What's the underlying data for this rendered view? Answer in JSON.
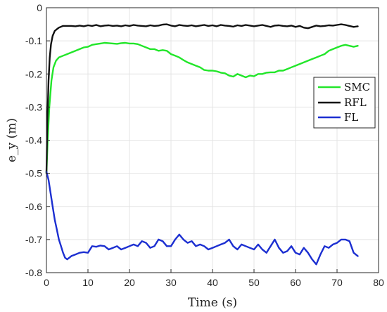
{
  "chart_data": {
    "type": "line",
    "xlabel": "Time (s)",
    "ylabel": "e_y (m)",
    "xlim": [
      0,
      80
    ],
    "ylim": [
      -0.8,
      0
    ],
    "xticks": [
      "0",
      "10",
      "20",
      "30",
      "40",
      "50",
      "60",
      "70",
      "80"
    ],
    "yticks": [
      "0",
      "-0.1",
      "-0.2",
      "-0.3",
      "-0.4",
      "-0.5",
      "-0.6",
      "-0.7",
      "-0.8"
    ],
    "grid": true,
    "legend_position": "right",
    "series": [
      {
        "name": "SMC",
        "color": "#22e62a",
        "x": [
          0,
          0.3,
          0.7,
          1.2,
          1.7,
          2.3,
          3,
          4,
          5,
          6,
          7,
          8,
          9,
          10,
          11,
          12,
          13,
          14,
          15,
          16,
          17,
          18,
          19,
          20,
          21,
          22,
          23,
          24,
          25,
          26,
          27,
          28,
          29,
          30,
          31,
          32,
          33,
          34,
          35,
          36,
          37,
          38,
          39,
          40,
          41,
          42,
          43,
          44,
          45,
          46,
          47,
          48,
          49,
          50,
          51,
          52,
          53,
          54,
          55,
          56,
          57,
          58,
          59,
          60,
          61,
          62,
          63,
          64,
          65,
          66,
          67,
          68,
          69,
          70,
          71,
          72,
          73,
          74,
          75
        ],
        "y": [
          -0.5,
          -0.4,
          -0.3,
          -0.22,
          -0.18,
          -0.16,
          -0.15,
          -0.145,
          -0.14,
          -0.135,
          -0.13,
          -0.125,
          -0.12,
          -0.118,
          -0.112,
          -0.11,
          -0.108,
          -0.106,
          -0.107,
          -0.108,
          -0.109,
          -0.107,
          -0.106,
          -0.108,
          -0.108,
          -0.11,
          -0.115,
          -0.12,
          -0.125,
          -0.125,
          -0.13,
          -0.128,
          -0.13,
          -0.14,
          -0.145,
          -0.15,
          -0.158,
          -0.165,
          -0.17,
          -0.175,
          -0.18,
          -0.188,
          -0.19,
          -0.19,
          -0.192,
          -0.196,
          -0.198,
          -0.205,
          -0.208,
          -0.2,
          -0.205,
          -0.21,
          -0.205,
          -0.207,
          -0.2,
          -0.2,
          -0.196,
          -0.195,
          -0.195,
          -0.19,
          -0.19,
          -0.185,
          -0.18,
          -0.175,
          -0.17,
          -0.165,
          -0.16,
          -0.155,
          -0.15,
          -0.145,
          -0.14,
          -0.13,
          -0.125,
          -0.12,
          -0.115,
          -0.112,
          -0.115,
          -0.118,
          -0.115
        ]
      },
      {
        "name": "RFL",
        "color": "#111111",
        "x": [
          0,
          0.2,
          0.5,
          0.8,
          1.1,
          1.5,
          2,
          2.5,
          3,
          4,
          5,
          6,
          7,
          8,
          9,
          10,
          11,
          12,
          13,
          14,
          15,
          16,
          17,
          18,
          19,
          20,
          21,
          22,
          23,
          24,
          25,
          26,
          27,
          28,
          29,
          30,
          31,
          32,
          33,
          34,
          35,
          36,
          37,
          38,
          39,
          40,
          41,
          42,
          43,
          44,
          45,
          46,
          47,
          48,
          49,
          50,
          51,
          52,
          53,
          54,
          55,
          56,
          57,
          58,
          59,
          60,
          61,
          62,
          63,
          64,
          65,
          66,
          67,
          68,
          69,
          70,
          71,
          72,
          73,
          74,
          75
        ],
        "y": [
          -0.5,
          -0.35,
          -0.22,
          -0.15,
          -0.11,
          -0.085,
          -0.07,
          -0.065,
          -0.06,
          -0.055,
          -0.055,
          -0.055,
          -0.056,
          -0.054,
          -0.056,
          -0.053,
          -0.055,
          -0.052,
          -0.056,
          -0.054,
          -0.053,
          -0.055,
          -0.054,
          -0.056,
          -0.053,
          -0.055,
          -0.052,
          -0.054,
          -0.055,
          -0.056,
          -0.053,
          -0.055,
          -0.054,
          -0.051,
          -0.05,
          -0.054,
          -0.056,
          -0.052,
          -0.054,
          -0.055,
          -0.053,
          -0.056,
          -0.054,
          -0.052,
          -0.055,
          -0.053,
          -0.056,
          -0.052,
          -0.054,
          -0.055,
          -0.057,
          -0.053,
          -0.055,
          -0.052,
          -0.054,
          -0.056,
          -0.054,
          -0.052,
          -0.055,
          -0.058,
          -0.054,
          -0.053,
          -0.055,
          -0.056,
          -0.054,
          -0.058,
          -0.055,
          -0.06,
          -0.062,
          -0.058,
          -0.054,
          -0.056,
          -0.055,
          -0.053,
          -0.054,
          -0.052,
          -0.05,
          -0.052,
          -0.055,
          -0.058,
          -0.056
        ]
      },
      {
        "name": "FL",
        "color": "#1c2fd1",
        "x": [
          0,
          0.5,
          1,
          1.5,
          2,
          2.5,
          3,
          3.5,
          4,
          4.5,
          5,
          6,
          7,
          8,
          9,
          10,
          11,
          12,
          13,
          14,
          15,
          16,
          17,
          18,
          19,
          20,
          21,
          22,
          23,
          24,
          25,
          26,
          27,
          28,
          29,
          30,
          31,
          32,
          33,
          34,
          35,
          36,
          37,
          38,
          39,
          40,
          41,
          42,
          43,
          44,
          45,
          46,
          47,
          48,
          49,
          50,
          51,
          52,
          53,
          54,
          55,
          56,
          57,
          58,
          59,
          60,
          61,
          62,
          63,
          64,
          65,
          66,
          67,
          68,
          69,
          70,
          71,
          72,
          73,
          74,
          75
        ],
        "y": [
          -0.495,
          -0.52,
          -0.56,
          -0.6,
          -0.64,
          -0.67,
          -0.7,
          -0.72,
          -0.74,
          -0.755,
          -0.76,
          -0.75,
          -0.745,
          -0.74,
          -0.738,
          -0.74,
          -0.72,
          -0.722,
          -0.718,
          -0.72,
          -0.73,
          -0.725,
          -0.72,
          -0.73,
          -0.725,
          -0.72,
          -0.715,
          -0.72,
          -0.705,
          -0.71,
          -0.725,
          -0.72,
          -0.7,
          -0.705,
          -0.72,
          -0.72,
          -0.7,
          -0.685,
          -0.7,
          -0.71,
          -0.705,
          -0.72,
          -0.715,
          -0.72,
          -0.73,
          -0.725,
          -0.72,
          -0.715,
          -0.71,
          -0.7,
          -0.72,
          -0.73,
          -0.715,
          -0.72,
          -0.725,
          -0.73,
          -0.715,
          -0.73,
          -0.74,
          -0.72,
          -0.7,
          -0.725,
          -0.74,
          -0.735,
          -0.72,
          -0.74,
          -0.745,
          -0.725,
          -0.74,
          -0.76,
          -0.775,
          -0.745,
          -0.72,
          -0.725,
          -0.715,
          -0.71,
          -0.7,
          -0.7,
          -0.705,
          -0.74,
          -0.75
        ]
      }
    ]
  }
}
